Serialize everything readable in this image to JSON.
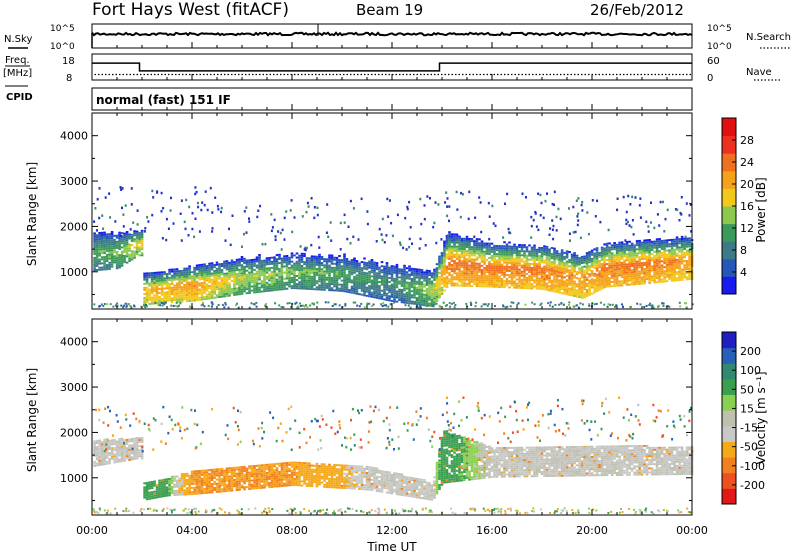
{
  "header": {
    "title": "Fort Hays West (fitACF)",
    "beam": "Beam 19",
    "date": "26/Feb/2012"
  },
  "noise_panel": {
    "left_label": "N.Sky",
    "right_label": "N.Search",
    "left_ticks": [
      "10^5",
      "10^0"
    ],
    "right_ticks": [
      "10^5",
      "10^0"
    ]
  },
  "freq_panel": {
    "left_label_1": "Freq.",
    "left_label_2": "[MHz]",
    "right_label": "Nave",
    "left_ticks": [
      "18",
      "8"
    ],
    "right_ticks": [
      "60",
      "0"
    ]
  },
  "cpid_panel": {
    "label": "CPID",
    "text": "normal (fast) 151 IF"
  },
  "colorbar_power": {
    "label": "Power [dB]",
    "ticks": [
      "28",
      "24",
      "20",
      "16",
      "12",
      "8",
      "4"
    ],
    "colors": [
      "#1a1af0",
      "#2457b8",
      "#3c7a88",
      "#3a9a5a",
      "#8cc850",
      "#f2c81a",
      "#f5a21a",
      "#f07020",
      "#ee3020",
      "#e01010"
    ]
  },
  "colorbar_velocity": {
    "label": "Velocity [m s⁻¹]",
    "ticks": [
      "200",
      "100",
      "50",
      "15",
      "-15",
      "-50",
      "-100",
      "-200"
    ],
    "colors": [
      "#2020c0",
      "#2860b8",
      "#308a70",
      "#3aa050",
      "#8ad050",
      "#c0c0b0",
      "#c8c8c8",
      "#f5a81a",
      "#f28020",
      "#f05020",
      "#e01818"
    ]
  },
  "chart_data": {
    "type": "heatmap",
    "xlabel": "Time UT",
    "ylabel": "Slant Range [km]",
    "x_ticks": [
      "00:00",
      "04:00",
      "08:00",
      "12:00",
      "16:00",
      "20:00",
      "00:00"
    ],
    "y_ticks": [
      "1000",
      "2000",
      "3000",
      "4000"
    ],
    "x_range_hours": [
      0,
      24
    ],
    "y_range_km": [
      180,
      4500
    ],
    "frequency_steps_mhz": [
      {
        "start_h": 0,
        "end_h": 1.9,
        "value": 14.5
      },
      {
        "start_h": 1.9,
        "end_h": 13.9,
        "value": 11.5
      },
      {
        "start_h": 13.9,
        "end_h": 24,
        "value": 14.5
      }
    ],
    "nave": 8,
    "power_band": [
      {
        "t": 0.0,
        "center_km": 1550,
        "width_km": 450,
        "power_db": 12
      },
      {
        "t": 1.0,
        "center_km": 1560,
        "width_km": 420,
        "power_db": 14
      },
      {
        "t": 1.8,
        "center_km": 1700,
        "width_km": 300,
        "power_db": 18
      },
      {
        "t": 2.0,
        "center_km": 680,
        "width_km": 350,
        "power_db": 20
      },
      {
        "t": 4.0,
        "center_km": 820,
        "width_km": 400,
        "power_db": 22
      },
      {
        "t": 6.0,
        "center_km": 1000,
        "width_km": 420,
        "power_db": 16
      },
      {
        "t": 8.0,
        "center_km": 1100,
        "width_km": 400,
        "power_db": 14
      },
      {
        "t": 10.0,
        "center_km": 1060,
        "width_km": 420,
        "power_db": 12
      },
      {
        "t": 12.0,
        "center_km": 870,
        "width_km": 450,
        "power_db": 10
      },
      {
        "t": 13.6,
        "center_km": 700,
        "width_km": 400,
        "power_db": 16
      },
      {
        "t": 14.2,
        "center_km": 1400,
        "width_km": 600,
        "power_db": 24
      },
      {
        "t": 16.0,
        "center_km": 1250,
        "width_km": 500,
        "power_db": 24
      },
      {
        "t": 18.0,
        "center_km": 1200,
        "width_km": 500,
        "power_db": 24
      },
      {
        "t": 19.6,
        "center_km": 1000,
        "width_km": 500,
        "power_db": 22
      },
      {
        "t": 20.5,
        "center_km": 1250,
        "width_km": 500,
        "power_db": 24
      },
      {
        "t": 22.0,
        "center_km": 1320,
        "width_km": 500,
        "power_db": 24
      },
      {
        "t": 24.0,
        "center_km": 1400,
        "width_km": 480,
        "power_db": 22
      }
    ],
    "velocity_band": [
      {
        "t": 0.0,
        "center_km": 1550,
        "width_km": 450,
        "velocity": -5
      },
      {
        "t": 1.8,
        "center_km": 1650,
        "width_km": 350,
        "velocity": -5
      },
      {
        "t": 2.0,
        "center_km": 700,
        "width_km": 300,
        "velocity": 30
      },
      {
        "t": 3.0,
        "center_km": 800,
        "width_km": 300,
        "velocity": 20
      },
      {
        "t": 4.0,
        "center_km": 900,
        "width_km": 400,
        "velocity": -50
      },
      {
        "t": 8.0,
        "center_km": 1100,
        "width_km": 400,
        "velocity": -50
      },
      {
        "t": 11.0,
        "center_km": 1000,
        "width_km": 400,
        "velocity": -5
      },
      {
        "t": 13.6,
        "center_km": 700,
        "width_km": 300,
        "velocity": -5
      },
      {
        "t": 14.0,
        "center_km": 1500,
        "width_km": 900,
        "velocity": 30
      },
      {
        "t": 16.0,
        "center_km": 1350,
        "width_km": 500,
        "velocity": -5
      },
      {
        "t": 24.0,
        "center_km": 1400,
        "width_km": 480,
        "velocity": -5
      }
    ]
  }
}
